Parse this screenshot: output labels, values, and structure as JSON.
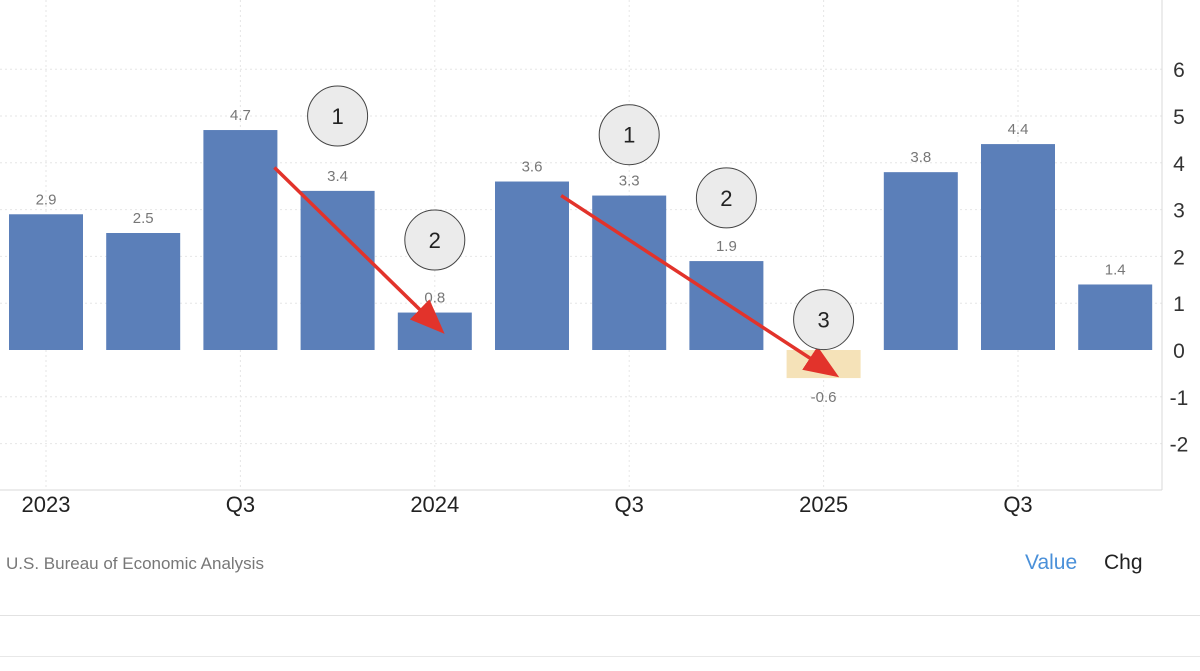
{
  "chart_data": {
    "type": "bar",
    "categories": [
      "2023 Q1",
      "2023 Q2",
      "2023 Q3",
      "2023 Q4",
      "2024 Q1",
      "2024 Q2",
      "2024 Q3",
      "2024 Q4",
      "2025 Q1",
      "2025 Q2",
      "2025 Q3",
      "2025 Q4"
    ],
    "values": [
      2.9,
      2.5,
      4.7,
      3.4,
      0.8,
      3.6,
      3.3,
      1.9,
      -0.6,
      3.8,
      4.4,
      1.4
    ],
    "value_labels": [
      "2.9",
      "2.5",
      "4.7",
      "3.4",
      "0.8",
      "3.6",
      "3.3",
      "1.9",
      "-0.6",
      "3.8",
      "4.4",
      "1.4"
    ],
    "x_tick_labels": [
      {
        "category_index": 0,
        "label": "2023"
      },
      {
        "category_index": 2,
        "label": "Q3"
      },
      {
        "category_index": 4,
        "label": "2024"
      },
      {
        "category_index": 6,
        "label": "Q3"
      },
      {
        "category_index": 8,
        "label": "2025"
      },
      {
        "category_index": 10,
        "label": "Q3"
      }
    ],
    "y_ticks": [
      6,
      5,
      4,
      3,
      2,
      1,
      0,
      -1,
      -2
    ],
    "y_tick_labels": [
      "6",
      "5",
      "4",
      "3",
      "2",
      "1",
      "0",
      "-1",
      "-2"
    ],
    "ylim": [
      -2.9,
      7.3
    ],
    "y_axis_side": "right",
    "grid": true,
    "colors": {
      "bar": "#5b7fb9",
      "negative_bar": "#f5e2b8",
      "arrow": "#e2332b",
      "grid": "#e6e6e6"
    },
    "annotations": {
      "callouts": [
        {
          "text": "1",
          "category_index": 3,
          "y": 5.0
        },
        {
          "text": "2",
          "category_index": 4,
          "y": 2.35
        },
        {
          "text": "1",
          "category_index": 6,
          "y": 4.6
        },
        {
          "text": "2",
          "category_index": 7,
          "y": 3.25
        },
        {
          "text": "3",
          "category_index": 8,
          "y": 0.65
        }
      ],
      "arrows": [
        {
          "from": {
            "category_index": 2.35,
            "y": 3.9
          },
          "to": {
            "category_index": 4.05,
            "y": 0.45
          }
        },
        {
          "from": {
            "category_index": 5.3,
            "y": 3.3
          },
          "to": {
            "category_index": 8.1,
            "y": -0.5
          }
        }
      ]
    }
  },
  "footer": {
    "source": "U.S. Bureau of Economic Analysis",
    "tabs": [
      "Value",
      "Chg"
    ]
  }
}
